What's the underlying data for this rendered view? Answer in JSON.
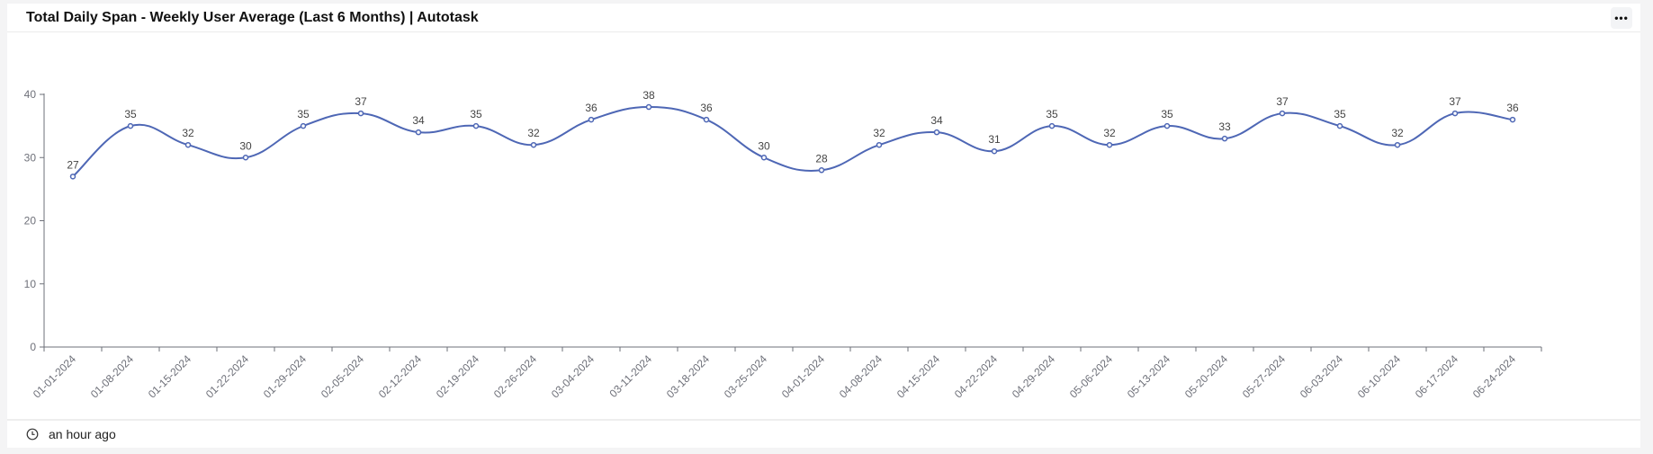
{
  "header": {
    "title": "Total Daily Span - Weekly User Average (Last 6 Months) | Autotask",
    "menu_label": "•••"
  },
  "footer": {
    "icon": "clock-icon",
    "updated": "an hour ago"
  },
  "colors": {
    "line": "#4e67b5",
    "axis": "#6e7079",
    "text": "#555555"
  },
  "chart_data": {
    "type": "line",
    "title": "Total Daily Span - Weekly User Average (Last 6 Months) | Autotask",
    "xlabel": "",
    "ylabel": "",
    "ylim": [
      0,
      40
    ],
    "yticks": [
      0,
      10,
      20,
      30,
      40
    ],
    "grid": false,
    "smooth": true,
    "categories": [
      "01-01-2024",
      "01-08-2024",
      "01-15-2024",
      "01-22-2024",
      "01-29-2024",
      "02-05-2024",
      "02-12-2024",
      "02-19-2024",
      "02-26-2024",
      "03-04-2024",
      "03-11-2024",
      "03-18-2024",
      "03-25-2024",
      "04-01-2024",
      "04-08-2024",
      "04-15-2024",
      "04-22-2024",
      "04-29-2024",
      "05-06-2024",
      "05-13-2024",
      "05-20-2024",
      "05-27-2024",
      "06-03-2024",
      "06-10-2024",
      "06-17-2024",
      "06-24-2024"
    ],
    "values": [
      27,
      35,
      32,
      30,
      35,
      37,
      34,
      35,
      32,
      36,
      38,
      36,
      30,
      28,
      32,
      34,
      31,
      35,
      32,
      35,
      33,
      37,
      35,
      32,
      37,
      36
    ]
  }
}
